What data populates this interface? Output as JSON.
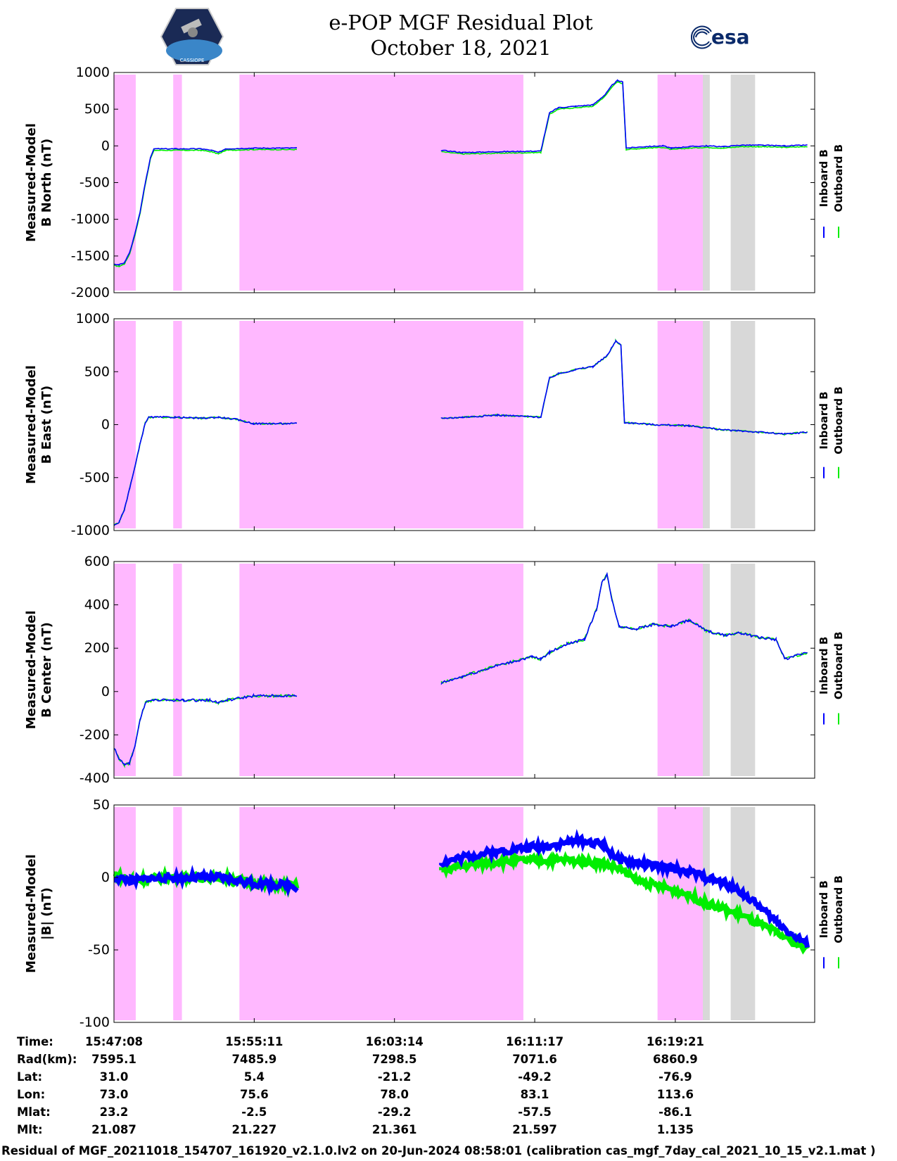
{
  "header": {
    "title": "e-POP MGF Residual Plot",
    "date": "October 18, 2021",
    "left_logo_text": "CASSIOPE",
    "right_logo_text": "esa"
  },
  "colors": {
    "inboard": "#0000ff",
    "outboard": "#00ee00",
    "shade_pink": "#ffb8ff",
    "shade_gray": "#d8d8d8"
  },
  "chart_data": [
    {
      "type": "line",
      "ylabel": "Measured-Model\nB North (nT)",
      "ylim": [
        -2000,
        1000
      ],
      "yticks": [
        1000,
        500,
        0,
        -500,
        -1000,
        -1500,
        -2000
      ],
      "legend": [
        "Inboard B",
        "Outboard B"
      ],
      "series_points_minutes": [
        [
          0,
          -1610
        ],
        [
          0.3,
          -1620
        ],
        [
          0.6,
          -1590
        ],
        [
          0.9,
          -1450
        ],
        [
          1.2,
          -1200
        ],
        [
          1.5,
          -900
        ],
        [
          1.8,
          -500
        ],
        [
          2.1,
          -150
        ],
        [
          2.3,
          -40
        ],
        [
          3.5,
          -40
        ],
        [
          5.0,
          -40
        ],
        [
          5.6,
          -60
        ],
        [
          6.0,
          -90
        ],
        [
          6.4,
          -40
        ],
        [
          8.0,
          -30
        ],
        [
          10.5,
          -30
        ],
        [
          18.8,
          -60
        ],
        [
          20.0,
          -90
        ],
        [
          22.0,
          -80
        ],
        [
          24.5,
          -70
        ],
        [
          25.0,
          450
        ],
        [
          25.5,
          520
        ],
        [
          26.5,
          540
        ],
        [
          27.5,
          560
        ],
        [
          28.2,
          700
        ],
        [
          28.6,
          830
        ],
        [
          28.9,
          890
        ],
        [
          29.2,
          870
        ],
        [
          29.4,
          -30
        ],
        [
          30.5,
          -10
        ],
        [
          31.5,
          0
        ],
        [
          32.0,
          -30
        ],
        [
          33.0,
          -10
        ],
        [
          34.0,
          0
        ],
        [
          35.0,
          -10
        ],
        [
          36.0,
          10
        ],
        [
          37.0,
          10
        ],
        [
          38.5,
          0
        ],
        [
          39.8,
          10
        ]
      ],
      "outboard_offset": -20
    },
    {
      "type": "line",
      "ylabel": "Measured-Model\nB East (nT)",
      "ylim": [
        -1000,
        1000
      ],
      "yticks": [
        1000,
        500,
        0,
        -500,
        -1000
      ],
      "legend": [
        "Inboard B",
        "Outboard B"
      ],
      "series_points_minutes": [
        [
          0,
          -950
        ],
        [
          0.3,
          -920
        ],
        [
          0.6,
          -800
        ],
        [
          0.9,
          -600
        ],
        [
          1.2,
          -400
        ],
        [
          1.5,
          -180
        ],
        [
          1.8,
          20
        ],
        [
          2.0,
          70
        ],
        [
          3.5,
          70
        ],
        [
          5.0,
          60
        ],
        [
          6.0,
          70
        ],
        [
          7.0,
          50
        ],
        [
          8.0,
          10
        ],
        [
          10.5,
          10
        ],
        [
          18.8,
          60
        ],
        [
          20.0,
          70
        ],
        [
          22.0,
          90
        ],
        [
          24.5,
          70
        ],
        [
          25.0,
          440
        ],
        [
          25.5,
          480
        ],
        [
          26.5,
          520
        ],
        [
          27.5,
          550
        ],
        [
          28.3,
          650
        ],
        [
          28.8,
          790
        ],
        [
          29.1,
          750
        ],
        [
          29.3,
          20
        ],
        [
          31.0,
          0
        ],
        [
          33.0,
          -10
        ],
        [
          35.0,
          -50
        ],
        [
          37.0,
          -70
        ],
        [
          38.5,
          -90
        ],
        [
          39.8,
          -70
        ]
      ],
      "outboard_offset": 0
    },
    {
      "type": "line",
      "ylabel": "Measured-Model\nB Center (nT)",
      "ylim": [
        -400,
        600
      ],
      "yticks": [
        600,
        400,
        200,
        0,
        -200,
        -400
      ],
      "legend": [
        "Inboard B",
        "Outboard B"
      ],
      "series_points_minutes": [
        [
          0,
          -260
        ],
        [
          0.3,
          -310
        ],
        [
          0.6,
          -340
        ],
        [
          0.9,
          -330
        ],
        [
          1.2,
          -250
        ],
        [
          1.5,
          -130
        ],
        [
          1.8,
          -50
        ],
        [
          2.2,
          -40
        ],
        [
          4.0,
          -40
        ],
        [
          5.5,
          -40
        ],
        [
          6.0,
          -50
        ],
        [
          6.5,
          -40
        ],
        [
          8.0,
          -20
        ],
        [
          10.5,
          -20
        ],
        [
          18.8,
          40
        ],
        [
          20.0,
          70
        ],
        [
          22.0,
          120
        ],
        [
          24.0,
          160
        ],
        [
          24.5,
          150
        ],
        [
          25.0,
          180
        ],
        [
          26.0,
          220
        ],
        [
          27.0,
          240
        ],
        [
          27.7,
          380
        ],
        [
          28.0,
          500
        ],
        [
          28.3,
          540
        ],
        [
          28.6,
          420
        ],
        [
          29.0,
          300
        ],
        [
          30.0,
          290
        ],
        [
          31.0,
          310
        ],
        [
          32.0,
          300
        ],
        [
          33.0,
          330
        ],
        [
          34.0,
          280
        ],
        [
          35.0,
          260
        ],
        [
          36.0,
          270
        ],
        [
          37.0,
          250
        ],
        [
          38.0,
          240
        ],
        [
          38.5,
          150
        ],
        [
          39.8,
          180
        ]
      ],
      "outboard_offset": 0
    },
    {
      "type": "line",
      "ylabel": "Measured-Model\n|B| (nT)",
      "ylim": [
        -100,
        50
      ],
      "yticks": [
        50,
        0,
        -50,
        -100
      ],
      "legend": [
        "Inboard B",
        "Outboard B"
      ],
      "series_points_minutes": [
        [
          0,
          0
        ],
        [
          1.0,
          -2
        ],
        [
          2.0,
          -1
        ],
        [
          3.0,
          0
        ],
        [
          4.0,
          0
        ],
        [
          5.0,
          0
        ],
        [
          6.0,
          0
        ],
        [
          7.0,
          -2
        ],
        [
          8.0,
          -4
        ],
        [
          10.5,
          -6
        ],
        [
          18.8,
          10
        ],
        [
          20.0,
          14
        ],
        [
          22.0,
          18
        ],
        [
          24.0,
          21
        ],
        [
          25.0,
          22
        ],
        [
          25.5,
          23
        ],
        [
          26.0,
          24
        ],
        [
          26.5,
          25
        ],
        [
          27.0,
          25
        ],
        [
          27.5,
          24
        ],
        [
          28.0,
          23
        ],
        [
          29.0,
          12
        ],
        [
          30.0,
          10
        ],
        [
          31.0,
          8
        ],
        [
          32.0,
          6
        ],
        [
          33.0,
          4
        ],
        [
          34.0,
          0
        ],
        [
          35.0,
          -4
        ],
        [
          36.0,
          -10
        ],
        [
          37.0,
          -20
        ],
        [
          38.0,
          -30
        ],
        [
          39.0,
          -40
        ],
        [
          39.8,
          -46
        ]
      ],
      "outboard_points_minutes": [
        [
          0,
          2
        ],
        [
          1.0,
          -2
        ],
        [
          2.0,
          -1
        ],
        [
          3.0,
          0
        ],
        [
          4.0,
          0
        ],
        [
          5.0,
          0
        ],
        [
          6.0,
          0
        ],
        [
          7.0,
          -2
        ],
        [
          8.0,
          -4
        ],
        [
          10.5,
          -6
        ],
        [
          18.8,
          5
        ],
        [
          20.0,
          8
        ],
        [
          22.0,
          11
        ],
        [
          24.0,
          12
        ],
        [
          25.0,
          12
        ],
        [
          26.0,
          12
        ],
        [
          27.0,
          11
        ],
        [
          28.0,
          10
        ],
        [
          29.0,
          6
        ],
        [
          30.0,
          -2
        ],
        [
          31.0,
          -5
        ],
        [
          32.0,
          -8
        ],
        [
          33.0,
          -12
        ],
        [
          34.0,
          -18
        ],
        [
          35.0,
          -22
        ],
        [
          36.0,
          -26
        ],
        [
          37.0,
          -32
        ],
        [
          38.0,
          -38
        ],
        [
          39.0,
          -44
        ],
        [
          39.8,
          -50
        ]
      ]
    }
  ],
  "shading": {
    "pink_bands_minutes": [
      [
        0,
        1.25
      ],
      [
        3.4,
        3.9
      ],
      [
        7.2,
        23.5
      ],
      [
        31.2,
        34.1
      ]
    ],
    "gray_bands_minutes": [
      [
        33.8,
        34.2
      ],
      [
        35.4,
        36.8
      ]
    ],
    "note_hidden": ""
  },
  "time_axis": {
    "minutes_total": 40.22,
    "tick_minutes": [
      0,
      8.05,
      16.1,
      24.15,
      32.22
    ]
  },
  "ephemeris": {
    "labels": [
      "Time:",
      "Rad(km):",
      "Lat:",
      "Lon:",
      "Mlat:",
      "Mlt:"
    ],
    "columns": [
      [
        "15:47:08",
        "7595.1",
        "31.0",
        "73.0",
        "23.2",
        "21.087"
      ],
      [
        "15:55:11",
        "7485.9",
        "5.4",
        "75.6",
        "-2.5",
        "21.227"
      ],
      [
        "16:03:14",
        "7298.5",
        "-21.2",
        "78.0",
        "-29.2",
        "21.361"
      ],
      [
        "16:11:17",
        "7071.6",
        "-49.2",
        "83.1",
        "-57.5",
        "21.597"
      ],
      [
        "16:19:21",
        "6860.9",
        "-76.9",
        "113.6",
        "-86.1",
        "1.135"
      ]
    ]
  },
  "footer": {
    "text": "Residual of MGF_20211018_154707_161920_v2.1.0.lv2 on 20-Jun-2024 08:58:01 (calibration cas_mgf_7day_cal_2021_10_15_v2.1.mat )"
  }
}
